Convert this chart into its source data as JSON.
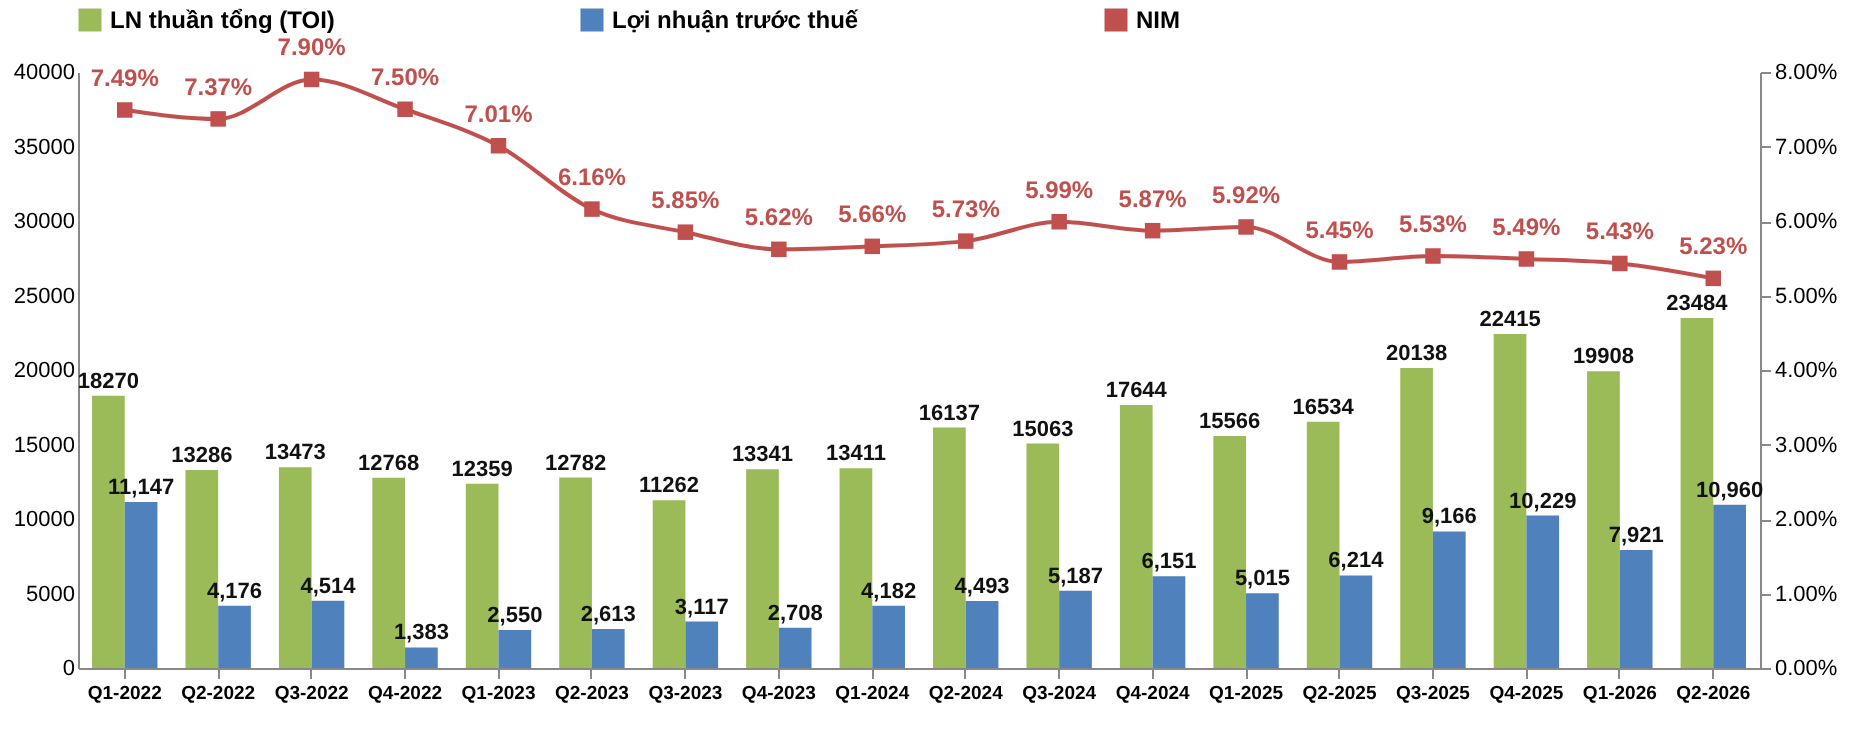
{
  "chart_data": {
    "type": "bar",
    "categories": [
      "Q1-2022",
      "Q2-2022",
      "Q3-2022",
      "Q4-2022",
      "Q1-2023",
      "Q2-2023",
      "Q3-2023",
      "Q4-2023",
      "Q1-2024",
      "Q2-2024",
      "Q3-2024",
      "Q4-2024",
      "Q1-2025",
      "Q2-2025",
      "Q3-2025",
      "Q4-2025",
      "Q1-2026",
      "Q2-2026"
    ],
    "series": [
      {
        "name": "LN thuần tổng (TOI)",
        "color": "#9bbb59",
        "values": [
          18270,
          13286,
          13473,
          12768,
          12359,
          12782,
          11262,
          13341,
          13411,
          16137,
          15063,
          17644,
          15566,
          16534,
          20138,
          22415,
          19908,
          23484
        ],
        "value_labels": [
          "18270",
          "13286",
          "13473",
          "12768",
          "12359",
          "12782",
          "11262",
          "13341",
          "13411",
          "16137",
          "15063",
          "17644",
          "15566",
          "16534",
          "20138",
          "22415",
          "19908",
          "23484"
        ]
      },
      {
        "name": "Lợi nhuận trước thuế",
        "color": "#4f81bd",
        "values": [
          11147,
          4176,
          4514,
          1383,
          2550,
          2613,
          3117,
          2708,
          4182,
          4493,
          5187,
          6151,
          5015,
          6214,
          9166,
          10229,
          7921,
          10960
        ],
        "value_labels": [
          "11,147",
          "4,176",
          "4,514",
          "1,383",
          "2,550",
          "2,613",
          "3,117",
          "2,708",
          "4,182",
          "4,493",
          "5,187",
          "6,151",
          "5,015",
          "6,214",
          "9,166",
          "10,229",
          "7,921",
          "10,960"
        ]
      },
      {
        "name": "NIM",
        "type": "line",
        "axis": "y2",
        "color": "#c0504d",
        "values": [
          7.49,
          7.37,
          7.9,
          7.5,
          7.01,
          6.16,
          5.85,
          5.62,
          5.66,
          5.73,
          5.99,
          5.87,
          5.92,
          5.45,
          5.53,
          5.49,
          5.43,
          5.23
        ],
        "value_labels": [
          "7.49%",
          "7.37%",
          "7.90%",
          "7.50%",
          "7.01%",
          "6.16%",
          "5.85%",
          "5.62%",
          "5.66%",
          "5.73%",
          "5.99%",
          "5.87%",
          "5.92%",
          "5.45%",
          "5.53%",
          "5.49%",
          "5.43%",
          "5.23%"
        ]
      }
    ],
    "ylim": [
      0,
      40000
    ],
    "yticks": [
      0,
      5000,
      10000,
      15000,
      20000,
      25000,
      30000,
      35000,
      40000
    ],
    "y2lim": [
      0,
      8
    ],
    "y2ticks": [
      {
        "value": 0,
        "label": "0.00%"
      },
      {
        "value": 1,
        "label": "1.00%"
      },
      {
        "value": 2,
        "label": "2.00%"
      },
      {
        "value": 3,
        "label": "3.00%"
      },
      {
        "value": 4,
        "label": "4.00%"
      },
      {
        "value": 5,
        "label": "5.00%"
      },
      {
        "value": 6,
        "label": "6.00%"
      },
      {
        "value": 7,
        "label": "7.00%"
      },
      {
        "value": 8,
        "label": "8.00%"
      }
    ],
    "legend": "top",
    "grid": false,
    "marker": "square",
    "line_style": "solid"
  }
}
